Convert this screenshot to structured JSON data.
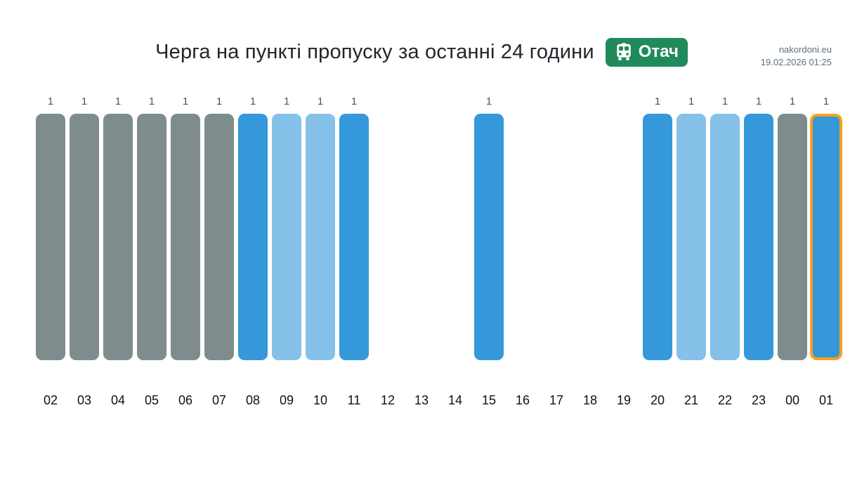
{
  "header": {
    "site": "nakordoni.eu",
    "timestamp": "19.02.2026 01:25"
  },
  "title": {
    "text": "Черга на пункті пропуску за останні 24 години",
    "badge": {
      "label": "Отач",
      "icon": "bus-icon"
    }
  },
  "colors": {
    "bar_gray": "#7f8c8d",
    "bar_blue": "#3498db",
    "bar_light_blue": "#85c1e9",
    "highlight_border": "#f9a11b",
    "badge_background": "#218a5b",
    "value_label": "#4d5656",
    "axis_label": "#111111",
    "header_text": "#5d6d7e",
    "title_text": "#21262b"
  },
  "chart_data": {
    "type": "bar",
    "title": "Черга на пункті пропуску за останні 24 години",
    "xlabel": "",
    "ylabel": "",
    "categories": [
      "02",
      "03",
      "04",
      "05",
      "06",
      "07",
      "08",
      "09",
      "10",
      "11",
      "12",
      "13",
      "14",
      "15",
      "16",
      "17",
      "18",
      "19",
      "20",
      "21",
      "22",
      "23",
      "00",
      "01"
    ],
    "values": [
      1,
      1,
      1,
      1,
      1,
      1,
      1,
      1,
      1,
      1,
      null,
      null,
      null,
      1,
      null,
      null,
      null,
      null,
      1,
      1,
      1,
      1,
      1,
      1
    ],
    "bar_colors": [
      "gray",
      "gray",
      "gray",
      "gray",
      "gray",
      "gray",
      "blue",
      "light_blue",
      "light_blue",
      "blue",
      null,
      null,
      null,
      "blue",
      null,
      null,
      null,
      null,
      "blue",
      "light_blue",
      "light_blue",
      "blue",
      "gray",
      "blue"
    ],
    "highlighted_category": "01",
    "value_labels": true,
    "ylim": [
      0,
      1
    ],
    "grid": false,
    "legend": "none"
  }
}
